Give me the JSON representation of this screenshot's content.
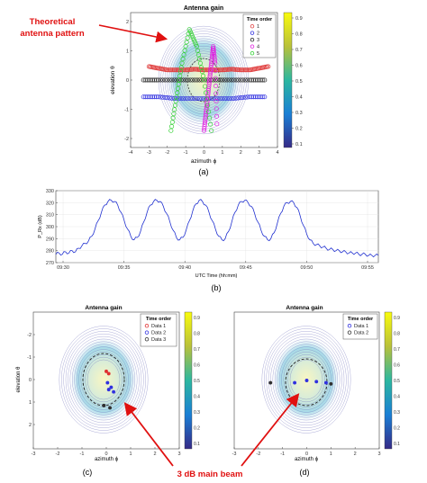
{
  "annotations": {
    "antenna_pattern": [
      "Theoretical",
      "antenna pattern"
    ],
    "main_beam": "3 dB main beam",
    "accent_color": "#e01010"
  },
  "panel_labels": {
    "a": "(a)",
    "b": "(b)",
    "c": "(c)",
    "d": "(d)"
  },
  "colorbar": {
    "ticks": [
      "0.9",
      "0.8",
      "0.7",
      "0.6",
      "0.5",
      "0.4",
      "0.3",
      "0.2",
      "0.1"
    ],
    "colormap": "parula"
  },
  "chart_data": [
    {
      "id": "a",
      "type": "scatter",
      "title": "Antenna gain",
      "xlabel": "azimuth ϕ",
      "ylabel": "elevation θ",
      "xlim": [
        -4,
        4
      ],
      "ylim": [
        -2,
        2
      ],
      "xticks": [
        "-4",
        "-3",
        "-2",
        "-1",
        "0",
        "1",
        "2",
        "3",
        "4"
      ],
      "yticks": [
        "2",
        "1",
        "0",
        "-1",
        "-2"
      ],
      "background": "antenna gain contour map with 3 dB circle",
      "legend": {
        "title": "Time order",
        "placement": "top-right",
        "entries": [
          {
            "label": "1",
            "color": "#e04040"
          },
          {
            "label": "2",
            "color": "#3030e0"
          },
          {
            "label": "3",
            "color": "#202020"
          },
          {
            "label": "4",
            "color": "#e020e0"
          },
          {
            "label": "5",
            "color": "#30d030"
          }
        ]
      },
      "series": [
        {
          "name": "1",
          "color": "#e04040",
          "x": [
            -3.0,
            -2.5,
            -2.0,
            -1.5,
            -1.0,
            -0.5,
            0.0,
            0.5,
            1.0,
            1.5,
            2.0,
            2.5,
            3.0,
            3.5
          ],
          "y": [
            0.4,
            0.35,
            0.3,
            0.3,
            0.3,
            0.32,
            0.3,
            0.3,
            0.3,
            0.32,
            0.3,
            0.3,
            0.35,
            0.4
          ]
        },
        {
          "name": "2",
          "color": "#3030e0",
          "x": [
            -3.3,
            -2.5,
            -1.5,
            -0.5,
            0.5,
            1.5,
            2.5,
            3.3
          ],
          "y": [
            -0.5,
            -0.5,
            -0.55,
            -0.55,
            -0.55,
            -0.55,
            -0.5,
            -0.5
          ]
        },
        {
          "name": "3",
          "color": "#202020",
          "x": [
            -3.3,
            -2.5,
            -1.5,
            -0.5,
            0.5,
            1.5,
            2.5,
            3.3
          ],
          "y": [
            0.0,
            0.0,
            0.0,
            0.0,
            0.0,
            0.0,
            0.0,
            0.0
          ]
        },
        {
          "name": "4",
          "color": "#e020e0",
          "x": [
            0.0,
            0.1,
            0.2,
            0.3,
            0.4,
            0.5,
            0.6,
            0.7
          ],
          "y": [
            -1.5,
            -1.0,
            -0.5,
            0.0,
            0.5,
            1.0,
            0.5,
            -1.3
          ]
        },
        {
          "name": "5",
          "color": "#30d030",
          "x": [
            -1.8,
            -1.5,
            -1.2,
            -0.8,
            -0.4,
            0.0,
            0.4
          ],
          "y": [
            -1.5,
            -0.5,
            0.5,
            1.5,
            1.0,
            0.0,
            -1.5
          ]
        }
      ]
    },
    {
      "id": "b",
      "type": "line",
      "xlabel": "UTC Time (hh:mm)",
      "ylabel": "P_Rx (dB)",
      "ylim": [
        270,
        330
      ],
      "yticks": [
        "330",
        "320",
        "310",
        "300",
        "290",
        "280",
        "270"
      ],
      "xticks": [
        "09:30",
        "09:35",
        "09:40",
        "09:45",
        "09:50",
        "09:55"
      ],
      "series": [
        {
          "name": "",
          "color": "#2030d0",
          "x_minutes_after_0930": [
            0,
            1,
            2,
            3,
            4,
            5,
            6,
            7,
            8,
            9,
            10,
            11,
            12,
            13,
            14,
            15,
            16,
            17,
            18,
            19,
            20,
            21,
            22,
            23,
            24,
            25,
            26,
            27,
            28,
            29,
            30,
            31,
            32,
            33,
            34,
            35,
            36,
            37,
            38,
            39,
            40,
            41,
            42,
            43,
            44,
            45,
            46,
            47,
            48,
            49,
            50,
            51,
            52,
            53,
            54,
            55,
            56,
            57,
            58,
            59,
            60,
            61,
            62,
            63,
            64,
            65,
            66,
            67,
            68,
            69,
            70,
            71,
            72,
            73,
            74,
            75,
            76,
            77,
            78,
            79,
            80,
            81,
            82,
            83,
            84,
            85,
            86,
            87,
            88,
            89,
            90,
            91,
            92,
            93,
            94,
            95,
            96,
            97,
            98,
            99
          ],
          "values": [
            277,
            278,
            277,
            279,
            278,
            280,
            279,
            282,
            284,
            286,
            288,
            292,
            298,
            305,
            312,
            318,
            321,
            322,
            321,
            318,
            312,
            305,
            298,
            292,
            289,
            291,
            296,
            304,
            312,
            318,
            321,
            322,
            321,
            317,
            311,
            304,
            297,
            291,
            289,
            291,
            297,
            305,
            313,
            319,
            322,
            321,
            318,
            312,
            305,
            298,
            292,
            289,
            290,
            296,
            304,
            312,
            318,
            321,
            322,
            320,
            317,
            311,
            304,
            297,
            292,
            289,
            290,
            295,
            303,
            311,
            317,
            320,
            321,
            320,
            316,
            309,
            301,
            294,
            289,
            286,
            285,
            284,
            283,
            282,
            281,
            281,
            280,
            280,
            279,
            279,
            278,
            278,
            278,
            277,
            277,
            277,
            276,
            276,
            276,
            276
          ]
        }
      ]
    },
    {
      "id": "c",
      "type": "scatter",
      "title": "Antenna gain",
      "xlabel": "azimuth ϕ",
      "ylabel": "elevation θ",
      "xlim": [
        -3,
        3
      ],
      "ylim": [
        -3,
        3
      ],
      "xticks": [
        "-3",
        "-2",
        "-1",
        "0",
        "1",
        "2",
        "3"
      ],
      "yticks": [
        "-2",
        "-1",
        "0",
        "1",
        "2"
      ],
      "legend": {
        "title": "Time order",
        "placement": "top-right",
        "entries": [
          {
            "label": "Data 1",
            "color": "#e03030"
          },
          {
            "label": "Data 2",
            "color": "#3030e0"
          },
          {
            "label": "Data 3",
            "color": "#303030"
          }
        ]
      },
      "series": [
        {
          "name": "Data 1",
          "color": "#e03030",
          "x": [
            0.0,
            0.1
          ],
          "y": [
            0.4,
            0.3
          ]
        },
        {
          "name": "Data 2",
          "color": "#3030e0",
          "x": [
            0.05,
            0.2,
            0.1,
            0.3
          ],
          "y": [
            -0.1,
            -0.3,
            -0.4,
            -0.5
          ]
        },
        {
          "name": "Data 3",
          "color": "#303030",
          "x": [
            -0.1,
            0.15
          ],
          "y": [
            -1.1,
            -1.2
          ]
        }
      ]
    },
    {
      "id": "d",
      "type": "scatter",
      "title": "Antenna gain",
      "xlabel": "azimuth ϕ",
      "ylabel": "",
      "xlim": [
        -3,
        3
      ],
      "ylim": [
        -3,
        3
      ],
      "xticks": [
        "-3",
        "-2",
        "-1",
        "0",
        "1",
        "2",
        "3"
      ],
      "yticks": [],
      "legend": {
        "title": "Time order",
        "placement": "top-right",
        "entries": [
          {
            "label": "Data 1",
            "color": "#3030e0"
          },
          {
            "label": "Data 2",
            "color": "#303030"
          }
        ]
      },
      "series": [
        {
          "name": "Data 1",
          "color": "#3030e0",
          "x": [
            -0.5,
            0.0,
            0.4,
            0.8
          ],
          "y": [
            -0.1,
            0.0,
            -0.05,
            -0.1
          ]
        },
        {
          "name": "Data 2",
          "color": "#303030",
          "x": [
            -1.5,
            1.0
          ],
          "y": [
            -0.1,
            -0.15
          ]
        }
      ]
    }
  ]
}
